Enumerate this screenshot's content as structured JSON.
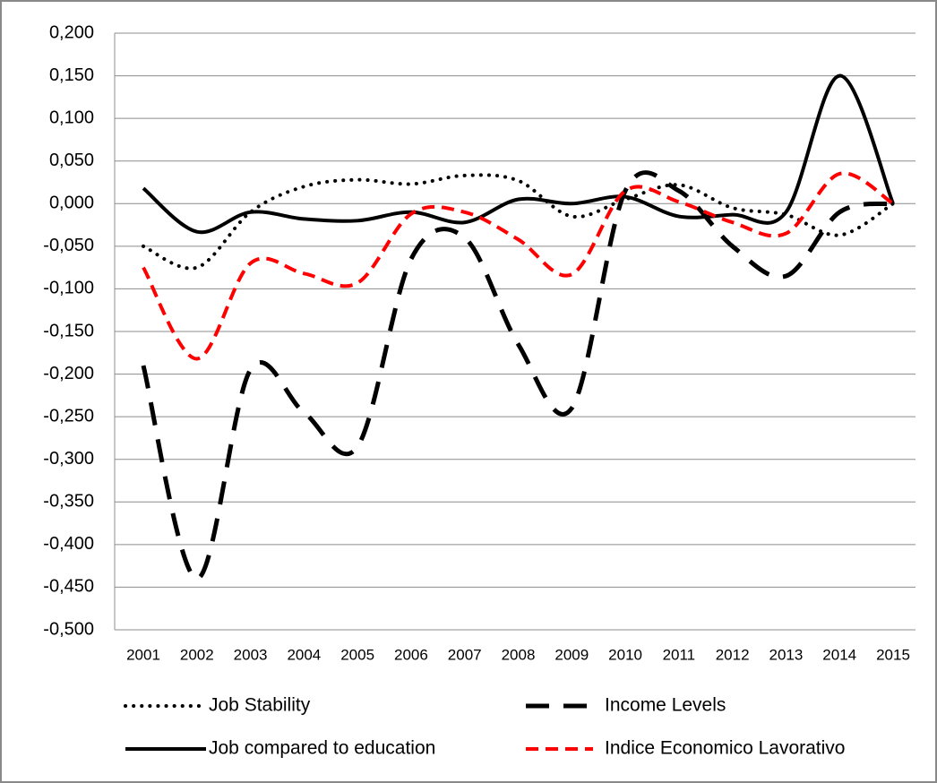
{
  "chart_data": {
    "type": "line",
    "categories": [
      "2001",
      "2002",
      "2003",
      "2004",
      "2005",
      "2006",
      "2007",
      "2008",
      "2009",
      "2010",
      "2011",
      "2012",
      "2013",
      "2014",
      "2015"
    ],
    "series": [
      {
        "name": "Job Stability",
        "color": "#000000",
        "style": "dotted",
        "values": [
          -0.05,
          -0.075,
          -0.01,
          0.02,
          0.028,
          0.023,
          0.033,
          0.027,
          -0.015,
          0.005,
          0.022,
          -0.005,
          -0.013,
          -0.037,
          0
        ]
      },
      {
        "name": "Income Levels",
        "color": "#000000",
        "style": "long-dash",
        "values": [
          -0.19,
          -0.44,
          -0.195,
          -0.245,
          -0.285,
          -0.065,
          -0.04,
          -0.165,
          -0.24,
          0.015,
          0.015,
          -0.05,
          -0.085,
          -0.01,
          0
        ]
      },
      {
        "name": "Job compared to education",
        "color": "#000000",
        "style": "solid",
        "values": [
          0.018,
          -0.033,
          -0.01,
          -0.018,
          -0.02,
          -0.01,
          -0.022,
          0.005,
          0,
          0.008,
          -0.015,
          -0.013,
          -0.01,
          0.15,
          0
        ]
      },
      {
        "name": "Indice Economico Lavorativo",
        "color": "#ff0000",
        "style": "dash",
        "values": [
          -0.075,
          -0.182,
          -0.07,
          -0.082,
          -0.093,
          -0.012,
          -0.01,
          -0.042,
          -0.083,
          0.015,
          0.002,
          -0.022,
          -0.035,
          0.035,
          0
        ]
      }
    ],
    "ylim": [
      -0.5,
      0.2
    ],
    "yticks": [
      {
        "value": -0.5,
        "label": "-0,500"
      },
      {
        "value": -0.45,
        "label": "-0,450"
      },
      {
        "value": -0.4,
        "label": "-0,400"
      },
      {
        "value": -0.35,
        "label": "-0,350"
      },
      {
        "value": -0.3,
        "label": "-0,300"
      },
      {
        "value": -0.25,
        "label": "-0,250"
      },
      {
        "value": -0.2,
        "label": "-0,200"
      },
      {
        "value": -0.15,
        "label": "-0,150"
      },
      {
        "value": -0.1,
        "label": "-0,100"
      },
      {
        "value": -0.05,
        "label": "-0,050"
      },
      {
        "value": 0,
        "label": "0,000"
      },
      {
        "value": 0.05,
        "label": "0,050"
      },
      {
        "value": 0.1,
        "label": "0,100"
      },
      {
        "value": 0.15,
        "label": "0,150"
      },
      {
        "value": 0.2,
        "label": "0,200"
      }
    ],
    "grid": true,
    "smooth": true,
    "legend": "bottom"
  }
}
